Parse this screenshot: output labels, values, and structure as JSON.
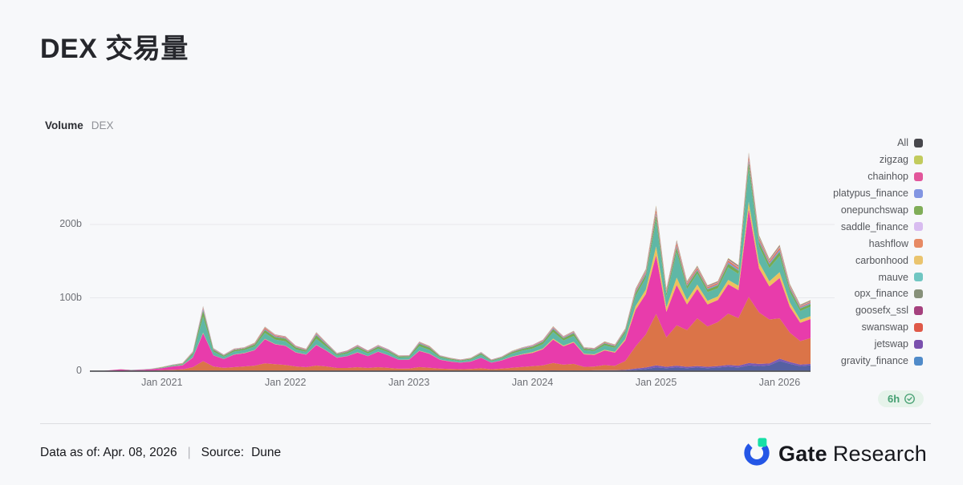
{
  "page": {
    "title": "DEX 交易量",
    "background": "#f7f8fa"
  },
  "chart_header": {
    "title": "Volume",
    "subtitle": "DEX"
  },
  "refresh_badge": {
    "label": "6h",
    "icon": "verified-check-icon",
    "text_color": "#46a072",
    "bg_color": "#e6f3ea"
  },
  "footer": {
    "data_as_of": "Data as of: Apr. 08, 2026",
    "separator": "|",
    "source_label": "Source:",
    "source_value": "Dune",
    "brand_bold": "Gate",
    "brand_regular": "Research",
    "brand_colors": {
      "ring_blue": "#2456e6",
      "notch_green": "#17dfa6",
      "text": "#17181d"
    }
  },
  "legend": [
    {
      "label": "All",
      "color": "#47474c"
    },
    {
      "label": "zigzag",
      "color": "#c2cb5d"
    },
    {
      "label": "chainhop",
      "color": "#e2569b"
    },
    {
      "label": "platypus_finance",
      "color": "#8295e2"
    },
    {
      "label": "onepunchswap",
      "color": "#80ad58"
    },
    {
      "label": "saddle_finance",
      "color": "#d8bcf0"
    },
    {
      "label": "hashflow",
      "color": "#e78a64"
    },
    {
      "label": "carbonhood",
      "color": "#eac46e"
    },
    {
      "label": "mauve",
      "color": "#70c6c2"
    },
    {
      "label": "opx_finance",
      "color": "#87917a"
    },
    {
      "label": "goosefx_ssl",
      "color": "#a5417e"
    },
    {
      "label": "swanswap",
      "color": "#df5948"
    },
    {
      "label": "jetswap",
      "color": "#7a50ae"
    },
    {
      "label": "gravity_finance",
      "color": "#508bc9"
    }
  ],
  "chart_data": {
    "type": "area",
    "stacked": true,
    "title": "Volume DEX",
    "xlabel": "",
    "ylabel": "",
    "unit": "billions USD",
    "ylim": [
      0,
      310
    ],
    "grid": true,
    "legend_position": "right",
    "y_ticks": [
      {
        "label": "0",
        "value": 0
      },
      {
        "label": "100b",
        "value": 100
      },
      {
        "label": "200b",
        "value": 200
      }
    ],
    "x_ticks": [
      {
        "label": "Jan 2021",
        "category": "2021-01"
      },
      {
        "label": "Jan 2022",
        "category": "2022-01"
      },
      {
        "label": "Jan 2023",
        "category": "2023-01"
      },
      {
        "label": "Jan 2024",
        "category": "2024-01"
      },
      {
        "label": "Jan 2025",
        "category": "2025-01"
      },
      {
        "label": "Jan 2026",
        "category": "2026-01"
      }
    ],
    "categories": [
      "2020-06",
      "2020-07",
      "2020-08",
      "2020-09",
      "2020-10",
      "2020-11",
      "2020-12",
      "2021-01",
      "2021-02",
      "2021-03",
      "2021-04",
      "2021-05",
      "2021-06",
      "2021-07",
      "2021-08",
      "2021-09",
      "2021-10",
      "2021-11",
      "2021-12",
      "2022-01",
      "2022-02",
      "2022-03",
      "2022-04",
      "2022-05",
      "2022-06",
      "2022-07",
      "2022-08",
      "2022-09",
      "2022-10",
      "2022-11",
      "2022-12",
      "2023-01",
      "2023-02",
      "2023-03",
      "2023-04",
      "2023-05",
      "2023-06",
      "2023-07",
      "2023-08",
      "2023-09",
      "2023-10",
      "2023-11",
      "2023-12",
      "2024-01",
      "2024-02",
      "2024-03",
      "2024-04",
      "2024-05",
      "2024-06",
      "2024-07",
      "2024-08",
      "2024-09",
      "2024-10",
      "2024-11",
      "2024-12",
      "2025-01",
      "2025-02",
      "2025-03",
      "2025-04",
      "2025-05",
      "2025-06",
      "2025-07",
      "2025-08",
      "2025-09",
      "2025-10",
      "2025-11",
      "2025-12",
      "2026-01",
      "2026-02",
      "2026-03",
      "2026-04"
    ],
    "series_note": "values in billions USD, array order = stack order bottom to top",
    "series": [
      {
        "name": "gravity_finance",
        "color": "#5560a2",
        "values": [
          0,
          0,
          0,
          0,
          0.05,
          0.05,
          0.1,
          0.2,
          0.2,
          0.2,
          0.2,
          0.3,
          0.2,
          0.2,
          0.2,
          0.2,
          0.2,
          0.3,
          0.3,
          0.2,
          0.2,
          0.2,
          0.3,
          0.2,
          0.2,
          0.2,
          0.2,
          0.2,
          0.2,
          0.2,
          0.2,
          0.3,
          0.3,
          0.3,
          0.3,
          0.3,
          0.3,
          0.3,
          0.3,
          0.3,
          0.3,
          0.3,
          0.4,
          0.5,
          0.5,
          0.6,
          0.5,
          0.5,
          0.5,
          0.8,
          0.8,
          0.8,
          1,
          2,
          3,
          5,
          4,
          5,
          4,
          5,
          4,
          5,
          6,
          5,
          8,
          7,
          8,
          14,
          10,
          7,
          8
        ]
      },
      {
        "name": "jetswap",
        "color": "#7b59b4",
        "values": [
          0,
          0,
          0,
          0,
          0.05,
          0.05,
          0.1,
          0.3,
          0.3,
          0.3,
          0.3,
          0.4,
          0.3,
          0.3,
          0.3,
          0.3,
          0.3,
          0.3,
          0.3,
          0.3,
          0.3,
          0.3,
          0.3,
          0.3,
          0.2,
          0.2,
          0.3,
          0.2,
          0.3,
          0.3,
          0.2,
          0.3,
          0.3,
          0.3,
          0.3,
          0.3,
          0.3,
          0.3,
          0.3,
          0.3,
          0.3,
          0.3,
          0.3,
          0.4,
          0.4,
          0.5,
          0.4,
          0.5,
          0.4,
          0.4,
          0.5,
          0.5,
          0.8,
          1.5,
          2,
          3,
          2,
          2.5,
          2,
          2,
          2,
          2,
          2.5,
          2.5,
          3,
          3,
          2.5,
          3,
          2.5,
          2,
          2
        ]
      },
      {
        "name": "swanswap",
        "color": "#db7448",
        "values": [
          0,
          0,
          0.1,
          0.2,
          0.3,
          0.4,
          0.6,
          1,
          1.5,
          2,
          5,
          13,
          6,
          4,
          5,
          6,
          7,
          10,
          9,
          8,
          6,
          5,
          7,
          6,
          4,
          4,
          5,
          4,
          5,
          4,
          3,
          3,
          5,
          4,
          3,
          2.5,
          2,
          2.5,
          3.5,
          2,
          3,
          4,
          5,
          6,
          7,
          10,
          8,
          9,
          5,
          5,
          7,
          6,
          12,
          30,
          45,
          70,
          40,
          55,
          50,
          65,
          55,
          60,
          70,
          65,
          90,
          70,
          60,
          55,
          40,
          32,
          35
        ]
      },
      {
        "name": "chainhop",
        "color": "#e83cab",
        "values": [
          0.05,
          0.1,
          1.2,
          2.2,
          1,
          1.2,
          1.8,
          2.5,
          4.5,
          5.5,
          13,
          38,
          15,
          12,
          17,
          18,
          21,
          33,
          27,
          26,
          19,
          17,
          28,
          21,
          14,
          16,
          20,
          16,
          21,
          17,
          12,
          12,
          22,
          19,
          12,
          10,
          9,
          10,
          14,
          9,
          11,
          15,
          17,
          18,
          22,
          32,
          25,
          29,
          17,
          16,
          20,
          18,
          28,
          50,
          55,
          80,
          35,
          55,
          35,
          40,
          30,
          30,
          40,
          38,
          120,
          60,
          45,
          55,
          35,
          25,
          26
        ]
      },
      {
        "name": "carbonhood",
        "color": "#eec25c",
        "values": [
          0,
          0,
          0,
          0,
          0.05,
          0.05,
          0.1,
          0.1,
          0.1,
          0.2,
          0.3,
          0.8,
          0.3,
          0.2,
          0.3,
          0.3,
          0.3,
          0.5,
          0.4,
          0.4,
          0.3,
          0.3,
          0.5,
          0.4,
          0.2,
          0.3,
          0.3,
          0.3,
          0.3,
          0.3,
          0.2,
          0.2,
          0.4,
          0.4,
          0.2,
          0.2,
          0.2,
          0.2,
          0.3,
          0.2,
          0.3,
          0.4,
          0.5,
          1,
          1,
          1.3,
          1,
          1.1,
          0.8,
          0.8,
          1,
          1,
          2,
          5,
          6,
          12,
          6,
          10,
          6,
          6,
          5,
          5,
          6,
          6,
          10,
          8,
          7,
          8,
          6,
          4,
          4
        ]
      },
      {
        "name": "mauve",
        "color": "#5fb7a6",
        "values": [
          0,
          0,
          0.05,
          0.1,
          0.15,
          0.2,
          0.3,
          0.5,
          0.8,
          1,
          4,
          22,
          5,
          3,
          4,
          4,
          5,
          8,
          6,
          6,
          4,
          3.5,
          8,
          5,
          3,
          3.5,
          5,
          3.5,
          4,
          4,
          3,
          3,
          6,
          5,
          3,
          2.5,
          2,
          2.5,
          4,
          2,
          2.5,
          4,
          5,
          5,
          6,
          9,
          7,
          8,
          5,
          4.5,
          6,
          5.5,
          8,
          14,
          16,
          35,
          15,
          35,
          15,
          15,
          12,
          11,
          17,
          16,
          45,
          22,
          18,
          22,
          14,
          12,
          13
        ]
      },
      {
        "name": "onepunchswap",
        "color": "#76ab52",
        "values": [
          0,
          0,
          0.05,
          0.1,
          0.1,
          0.15,
          0.2,
          0.5,
          0.7,
          0.8,
          2,
          8,
          2.5,
          1.5,
          2,
          2,
          2.5,
          4,
          3.5,
          3.5,
          2.5,
          2,
          5,
          3,
          1.5,
          2,
          2.5,
          2,
          2.5,
          2,
          1.5,
          1.5,
          3.5,
          3,
          1.5,
          1.2,
          1,
          1.2,
          2,
          1,
          1.2,
          2,
          2.2,
          2.5,
          3,
          4,
          3,
          3.5,
          2,
          2,
          2.5,
          2.2,
          3,
          4,
          4.5,
          8,
          4,
          6,
          4,
          4,
          3.5,
          4,
          5,
          4.5,
          9,
          6,
          5,
          6,
          4.5,
          3.5,
          3.5
        ]
      },
      {
        "name": "platypus_finance",
        "color": "#7f95de",
        "values": [
          0,
          0,
          0,
          0.05,
          0.05,
          0.1,
          0.1,
          0.2,
          0.2,
          0.3,
          0.8,
          2.5,
          0.8,
          0.5,
          0.6,
          0.6,
          0.8,
          1.2,
          1,
          1,
          0.8,
          0.7,
          1.5,
          1,
          0.6,
          0.7,
          0.9,
          0.7,
          0.8,
          0.7,
          0.5,
          0.5,
          1,
          0.8,
          0.5,
          0.4,
          0.4,
          0.4,
          0.6,
          0.4,
          0.4,
          0.6,
          0.7,
          0.8,
          1,
          1.3,
          1,
          1.1,
          0.7,
          0.7,
          0.8,
          0.8,
          1,
          1.5,
          2,
          3,
          1.5,
          2.5,
          1.5,
          1.5,
          1.2,
          1.5,
          2,
          1.8,
          3.5,
          2.5,
          2,
          2.5,
          1.8,
          1.4,
          1.5
        ]
      },
      {
        "name": "hashflow",
        "color": "#e2795a",
        "values": [
          0,
          0,
          0,
          0,
          0.05,
          0.1,
          0.1,
          0.2,
          0.2,
          0.3,
          0.5,
          1.5,
          0.5,
          0.4,
          0.5,
          0.5,
          0.8,
          2,
          1.5,
          1.2,
          0.8,
          0.7,
          1.2,
          0.8,
          0.5,
          0.6,
          0.8,
          0.6,
          0.8,
          0.6,
          0.4,
          0.4,
          0.8,
          0.7,
          0.4,
          0.3,
          0.3,
          0.3,
          0.5,
          0.3,
          0.4,
          0.5,
          0.6,
          0.7,
          0.9,
          1.2,
          0.9,
          1,
          0.6,
          0.6,
          0.8,
          0.7,
          1,
          2,
          2.5,
          5,
          2.5,
          4,
          2.5,
          2.5,
          2,
          2,
          2.5,
          2.5,
          5,
          3,
          2.5,
          3,
          2,
          1.5,
          1.5
        ]
      },
      {
        "name": "saddle_finance",
        "color": "#d5bce8",
        "values": [
          0,
          0,
          0,
          0,
          0,
          0.05,
          0.05,
          0.1,
          0.1,
          0.2,
          0.3,
          0.8,
          0.3,
          0.2,
          0.3,
          0.3,
          0.3,
          0.5,
          0.4,
          0.4,
          0.3,
          0.3,
          0.5,
          0.3,
          0.2,
          0.2,
          0.3,
          0.2,
          0.3,
          0.2,
          0.2,
          0.2,
          0.3,
          0.3,
          0.2,
          0.2,
          0.1,
          0.2,
          0.2,
          0.1,
          0.2,
          0.2,
          0.3,
          0.3,
          0.3,
          0.4,
          0.3,
          0.4,
          0.2,
          0.2,
          0.3,
          0.3,
          0.4,
          0.6,
          0.8,
          1.2,
          0.8,
          1,
          0.8,
          0.8,
          0.6,
          0.6,
          0.8,
          0.8,
          1.2,
          1,
          0.8,
          1,
          0.8,
          0.6,
          0.6
        ]
      },
      {
        "name": "opx_finance",
        "color": "#8d957b",
        "values": [
          0,
          0,
          0,
          0,
          0,
          0.05,
          0.05,
          0.1,
          0.1,
          0.1,
          0.2,
          0.6,
          0.2,
          0.2,
          0.2,
          0.2,
          0.3,
          0.4,
          0.3,
          0.3,
          0.2,
          0.2,
          0.4,
          0.3,
          0.2,
          0.2,
          0.2,
          0.2,
          0.2,
          0.2,
          0.1,
          0.2,
          0.3,
          0.2,
          0.2,
          0.1,
          0.1,
          0.1,
          0.2,
          0.1,
          0.2,
          0.2,
          0.2,
          0.3,
          0.3,
          0.4,
          0.3,
          0.4,
          0.2,
          0.2,
          0.3,
          0.3,
          0.4,
          0.8,
          1,
          1.5,
          0.8,
          1.2,
          0.8,
          0.8,
          0.7,
          0.7,
          0.9,
          0.9,
          1.5,
          1.2,
          1,
          1.2,
          0.9,
          0.7,
          0.7
        ]
      },
      {
        "name": "goosefx_ssl",
        "color": "#a8447f",
        "values": [
          0,
          0,
          0,
          0,
          0,
          0,
          0.05,
          0.1,
          0.1,
          0.1,
          0.2,
          0.5,
          0.2,
          0.1,
          0.2,
          0.2,
          0.2,
          0.3,
          0.3,
          0.2,
          0.2,
          0.2,
          0.3,
          0.2,
          0.1,
          0.2,
          0.2,
          0.2,
          0.2,
          0.2,
          0.1,
          0.1,
          0.2,
          0.2,
          0.1,
          0.1,
          0.1,
          0.1,
          0.2,
          0.1,
          0.1,
          0.2,
          0.2,
          0.2,
          0.3,
          0.3,
          0.3,
          0.3,
          0.2,
          0.2,
          0.3,
          0.2,
          0.3,
          0.6,
          0.8,
          1.2,
          0.7,
          1,
          0.7,
          0.7,
          0.6,
          0.6,
          0.8,
          0.8,
          1.2,
          1,
          0.8,
          1,
          0.8,
          0.6,
          0.6
        ]
      },
      {
        "name": "zigzag",
        "color": "#bfca5a",
        "values": [
          0,
          0,
          0,
          0,
          0,
          0,
          0.05,
          0.1,
          0.1,
          0.1,
          0.2,
          0.4,
          0.2,
          0.1,
          0.1,
          0.1,
          0.2,
          0.3,
          0.2,
          0.2,
          0.2,
          0.1,
          0.3,
          0.2,
          0.1,
          0.1,
          0.2,
          0.1,
          0.2,
          0.1,
          0.1,
          0.1,
          0.2,
          0.2,
          0.1,
          0.1,
          0.1,
          0.1,
          0.1,
          0.1,
          0.1,
          0.2,
          0.2,
          0.2,
          0.2,
          0.3,
          0.2,
          0.3,
          0.2,
          0.2,
          0.2,
          0.2,
          0.3,
          0.5,
          0.6,
          1,
          0.6,
          0.8,
          0.6,
          0.6,
          0.5,
          0.5,
          0.7,
          0.7,
          1,
          0.8,
          0.7,
          0.8,
          0.7,
          0.5,
          0.5
        ]
      }
    ]
  }
}
